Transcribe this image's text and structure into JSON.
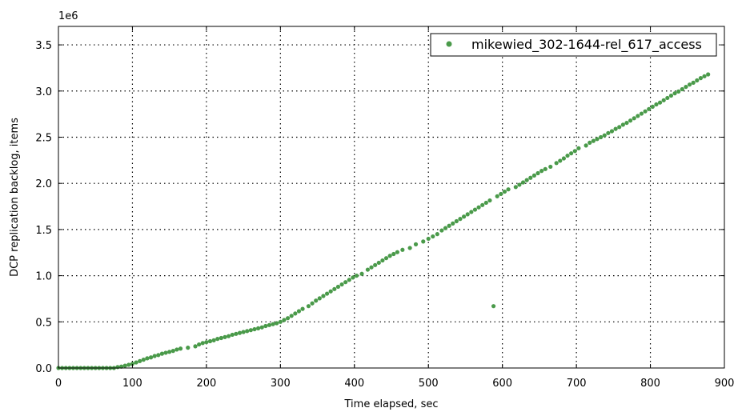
{
  "chart_data": {
    "type": "scatter",
    "xlabel": "Time elapsed, sec",
    "ylabel": "DCP replication backlog, items",
    "y_offset_label": "1e6",
    "xlim": [
      0,
      900
    ],
    "ylim": [
      0,
      3.7
    ],
    "x_ticks": [
      "0",
      "100",
      "200",
      "300",
      "400",
      "500",
      "600",
      "700",
      "800",
      "900"
    ],
    "y_ticks": [
      "0.0",
      "0.5",
      "1.0",
      "1.5",
      "2.0",
      "2.5",
      "3.0",
      "3.5"
    ],
    "grid": true,
    "legend_position": "top-right",
    "marker_color": "#4a9a4a",
    "series": [
      {
        "name": "mikewied_302-1644-rel_617_access",
        "color": "#4a9a4a",
        "points": [
          [
            0,
            0
          ],
          [
            5,
            0
          ],
          [
            10,
            0
          ],
          [
            15,
            0
          ],
          [
            20,
            0
          ],
          [
            25,
            0
          ],
          [
            30,
            0
          ],
          [
            35,
            0
          ],
          [
            40,
            0
          ],
          [
            45,
            0
          ],
          [
            50,
            0
          ],
          [
            55,
            0
          ],
          [
            60,
            0
          ],
          [
            65,
            0
          ],
          [
            70,
            0
          ],
          [
            75,
            0
          ],
          [
            80,
            0.01
          ],
          [
            85,
            0.015
          ],
          [
            90,
            0.025
          ],
          [
            95,
            0.035
          ],
          [
            100,
            0.045
          ],
          [
            105,
            0.06
          ],
          [
            110,
            0.075
          ],
          [
            115,
            0.09
          ],
          [
            120,
            0.105
          ],
          [
            125,
            0.115
          ],
          [
            130,
            0.13
          ],
          [
            135,
            0.14
          ],
          [
            140,
            0.155
          ],
          [
            145,
            0.165
          ],
          [
            150,
            0.175
          ],
          [
            155,
            0.185
          ],
          [
            160,
            0.2
          ],
          [
            165,
            0.21
          ],
          [
            175,
            0.22
          ],
          [
            185,
            0.235
          ],
          [
            190,
            0.255
          ],
          [
            195,
            0.27
          ],
          [
            200,
            0.28
          ],
          [
            205,
            0.29
          ],
          [
            210,
            0.3
          ],
          [
            215,
            0.315
          ],
          [
            220,
            0.325
          ],
          [
            225,
            0.335
          ],
          [
            230,
            0.345
          ],
          [
            235,
            0.36
          ],
          [
            240,
            0.37
          ],
          [
            245,
            0.38
          ],
          [
            250,
            0.39
          ],
          [
            255,
            0.4
          ],
          [
            260,
            0.41
          ],
          [
            265,
            0.42
          ],
          [
            270,
            0.43
          ],
          [
            275,
            0.44
          ],
          [
            280,
            0.455
          ],
          [
            285,
            0.465
          ],
          [
            290,
            0.475
          ],
          [
            295,
            0.485
          ],
          [
            300,
            0.5
          ],
          [
            305,
            0.52
          ],
          [
            310,
            0.54
          ],
          [
            315,
            0.565
          ],
          [
            320,
            0.59
          ],
          [
            325,
            0.615
          ],
          [
            330,
            0.64
          ],
          [
            338,
            0.67
          ],
          [
            343,
            0.7
          ],
          [
            348,
            0.73
          ],
          [
            353,
            0.755
          ],
          [
            358,
            0.78
          ],
          [
            363,
            0.805
          ],
          [
            368,
            0.83
          ],
          [
            373,
            0.855
          ],
          [
            378,
            0.88
          ],
          [
            383,
            0.905
          ],
          [
            388,
            0.93
          ],
          [
            393,
            0.955
          ],
          [
            398,
            0.98
          ],
          [
            403,
            1.0
          ],
          [
            410,
            1.02
          ],
          [
            418,
            1.065
          ],
          [
            423,
            1.09
          ],
          [
            428,
            1.115
          ],
          [
            433,
            1.14
          ],
          [
            438,
            1.165
          ],
          [
            443,
            1.19
          ],
          [
            448,
            1.215
          ],
          [
            453,
            1.235
          ],
          [
            458,
            1.255
          ],
          [
            465,
            1.28
          ],
          [
            475,
            1.3
          ],
          [
            483,
            1.34
          ],
          [
            493,
            1.37
          ],
          [
            500,
            1.4
          ],
          [
            506,
            1.425
          ],
          [
            512,
            1.45
          ],
          [
            518,
            1.49
          ],
          [
            523,
            1.515
          ],
          [
            528,
            1.54
          ],
          [
            533,
            1.565
          ],
          [
            538,
            1.59
          ],
          [
            543,
            1.615
          ],
          [
            548,
            1.64
          ],
          [
            553,
            1.665
          ],
          [
            558,
            1.69
          ],
          [
            563,
            1.715
          ],
          [
            568,
            1.74
          ],
          [
            573,
            1.765
          ],
          [
            578,
            1.79
          ],
          [
            583,
            1.815
          ],
          [
            593,
            1.86
          ],
          [
            598,
            1.885
          ],
          [
            603,
            1.91
          ],
          [
            608,
            1.935
          ],
          [
            618,
            1.96
          ],
          [
            623,
            1.985
          ],
          [
            628,
            2.01
          ],
          [
            633,
            2.035
          ],
          [
            638,
            2.06
          ],
          [
            643,
            2.085
          ],
          [
            648,
            2.11
          ],
          [
            653,
            2.135
          ],
          [
            658,
            2.155
          ],
          [
            665,
            2.18
          ],
          [
            673,
            2.22
          ],
          [
            678,
            2.245
          ],
          [
            683,
            2.27
          ],
          [
            688,
            2.3
          ],
          [
            693,
            2.325
          ],
          [
            698,
            2.35
          ],
          [
            703,
            2.38
          ],
          [
            713,
            2.41
          ],
          [
            718,
            2.44
          ],
          [
            723,
            2.46
          ],
          [
            728,
            2.48
          ],
          [
            733,
            2.5
          ],
          [
            738,
            2.52
          ],
          [
            743,
            2.545
          ],
          [
            748,
            2.565
          ],
          [
            753,
            2.59
          ],
          [
            758,
            2.61
          ],
          [
            763,
            2.635
          ],
          [
            768,
            2.655
          ],
          [
            773,
            2.68
          ],
          [
            778,
            2.705
          ],
          [
            783,
            2.73
          ],
          [
            788,
            2.755
          ],
          [
            793,
            2.78
          ],
          [
            798,
            2.805
          ],
          [
            803,
            2.83
          ],
          [
            808,
            2.855
          ],
          [
            813,
            2.875
          ],
          [
            818,
            2.9
          ],
          [
            823,
            2.925
          ],
          [
            828,
            2.95
          ],
          [
            833,
            2.975
          ],
          [
            838,
            2.995
          ],
          [
            843,
            3.02
          ],
          [
            848,
            3.045
          ],
          [
            853,
            3.07
          ],
          [
            858,
            3.09
          ],
          [
            863,
            3.115
          ],
          [
            868,
            3.14
          ],
          [
            873,
            3.16
          ],
          [
            878,
            3.18
          ],
          [
            588,
            0.67
          ]
        ]
      }
    ]
  }
}
